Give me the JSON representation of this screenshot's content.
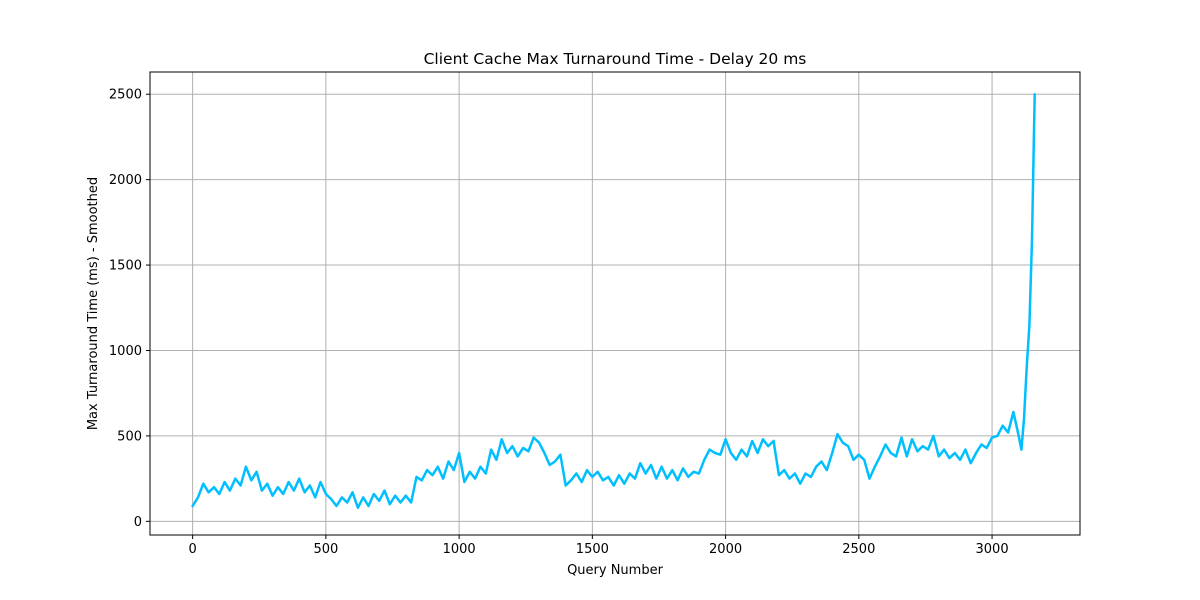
{
  "chart_data": {
    "type": "line",
    "title": "Client Cache Max Turnaround Time - Delay 20 ms",
    "xlabel": "Query Number",
    "ylabel": "Max Turnaround Time (ms) - Smoothed",
    "xlim": [
      -160,
      3330
    ],
    "ylim": [
      -80,
      2630
    ],
    "xticks": [
      0,
      500,
      1000,
      1500,
      2000,
      2500,
      3000
    ],
    "xtick_labels": [
      "0",
      "500",
      "1000",
      "1500",
      "2000",
      "2500",
      "3000"
    ],
    "yticks": [
      0,
      500,
      1000,
      1500,
      2000,
      2500
    ],
    "ytick_labels": [
      "0",
      "500",
      "1000",
      "1500",
      "2000",
      "2500"
    ],
    "grid": true,
    "series": [
      {
        "color": "#00bfff",
        "x": [
          0,
          20,
          40,
          60,
          80,
          100,
          120,
          140,
          160,
          180,
          200,
          220,
          240,
          260,
          280,
          300,
          320,
          340,
          360,
          380,
          400,
          420,
          440,
          460,
          480,
          500,
          520,
          540,
          560,
          580,
          600,
          620,
          640,
          660,
          680,
          700,
          720,
          740,
          760,
          780,
          800,
          820,
          840,
          860,
          880,
          900,
          920,
          940,
          960,
          980,
          1000,
          1020,
          1040,
          1060,
          1080,
          1100,
          1120,
          1140,
          1160,
          1180,
          1200,
          1220,
          1240,
          1260,
          1280,
          1300,
          1320,
          1340,
          1360,
          1380,
          1400,
          1420,
          1440,
          1460,
          1480,
          1500,
          1520,
          1540,
          1560,
          1580,
          1600,
          1620,
          1640,
          1660,
          1680,
          1700,
          1720,
          1740,
          1760,
          1780,
          1800,
          1820,
          1840,
          1860,
          1880,
          1900,
          1920,
          1940,
          1960,
          1980,
          2000,
          2020,
          2040,
          2060,
          2080,
          2100,
          2120,
          2140,
          2160,
          2180,
          2200,
          2220,
          2240,
          2260,
          2280,
          2300,
          2320,
          2340,
          2360,
          2380,
          2400,
          2420,
          2440,
          2460,
          2480,
          2500,
          2520,
          2540,
          2560,
          2580,
          2600,
          2620,
          2640,
          2660,
          2680,
          2700,
          2720,
          2740,
          2760,
          2780,
          2800,
          2820,
          2840,
          2860,
          2880,
          2900,
          2920,
          2940,
          2960,
          2980,
          3000,
          3020,
          3040,
          3060,
          3080,
          3100,
          3110,
          3120,
          3130,
          3140,
          3150,
          3160
        ],
        "y": [
          90,
          140,
          220,
          170,
          200,
          160,
          230,
          180,
          250,
          210,
          320,
          240,
          290,
          180,
          220,
          150,
          200,
          160,
          230,
          180,
          250,
          170,
          210,
          140,
          230,
          160,
          130,
          90,
          140,
          110,
          170,
          80,
          140,
          90,
          160,
          120,
          180,
          100,
          150,
          110,
          150,
          110,
          260,
          240,
          300,
          270,
          320,
          250,
          350,
          300,
          400,
          230,
          290,
          250,
          320,
          280,
          420,
          360,
          480,
          400,
          440,
          380,
          430,
          410,
          490,
          460,
          400,
          330,
          350,
          390,
          210,
          240,
          280,
          230,
          300,
          260,
          290,
          240,
          260,
          210,
          270,
          220,
          280,
          250,
          340,
          280,
          330,
          250,
          320,
          250,
          300,
          240,
          310,
          260,
          290,
          280,
          360,
          420,
          400,
          390,
          480,
          400,
          360,
          420,
          380,
          470,
          400,
          480,
          440,
          470,
          270,
          300,
          250,
          280,
          220,
          280,
          260,
          320,
          350,
          300,
          400,
          510,
          460,
          440,
          360,
          390,
          360,
          250,
          320,
          380,
          450,
          400,
          380,
          490,
          380,
          480,
          410,
          440,
          420,
          500,
          380,
          420,
          370,
          400,
          360,
          420,
          340,
          400,
          450,
          430,
          490,
          500,
          560,
          520,
          640,
          500,
          420,
          600,
          900,
          1150,
          1650,
          2500
        ],
        "name": ""
      }
    ]
  }
}
